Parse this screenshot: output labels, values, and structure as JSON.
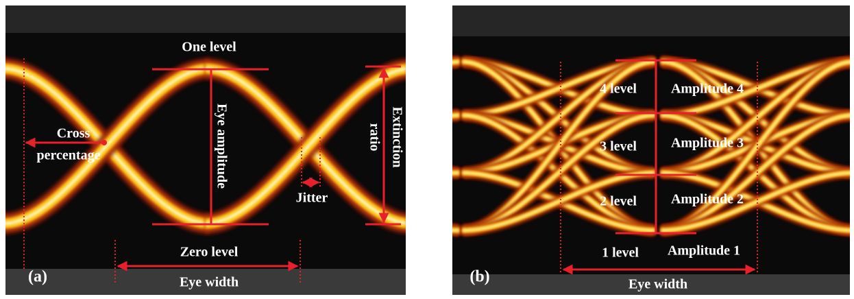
{
  "panel_a": {
    "label": "(a)",
    "one_level": "One level",
    "zero_level": "Zero level",
    "cross_1": "Cross",
    "cross_2": "percentage",
    "eye_amplitude": "Eye amplitude",
    "extinction_1": "Extinction",
    "extinction_2": "ratio",
    "jitter": "Jitter",
    "eye_width": "Eye width"
  },
  "panel_b": {
    "label": "(b)",
    "levels": [
      "4 level",
      "3 level",
      "2 level",
      "1 level"
    ],
    "amplitudes": [
      "Amplitude 4",
      "Amplitude 3",
      "Amplitude 2",
      "Amplitude 1"
    ],
    "eye_width": "Eye width"
  }
}
